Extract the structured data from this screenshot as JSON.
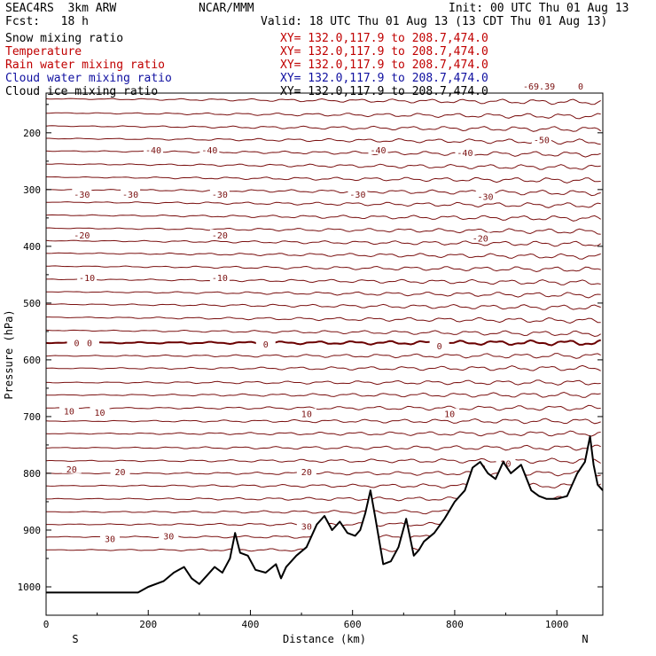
{
  "header": {
    "model": "SEAC4RS  3km ARW",
    "org": "NCAR/MMM",
    "init": "Init: 00 UTC Thu 01 Aug 13",
    "fcst": "Fcst:   18 h",
    "valid": "Valid: 18 UTC Thu 01 Aug 13 (13 CDT Thu 01 Aug 13)",
    "fields": [
      {
        "name": "Snow mixing ratio",
        "xy": "XY= 132.0,117.9 to 208.7,474.0",
        "color": "#000000",
        "xy_color": "#c00000"
      },
      {
        "name": "Temperature",
        "xy": "XY= 132.0,117.9 to 208.7,474.0",
        "color": "#c00000",
        "xy_color": "#c00000"
      },
      {
        "name": "Rain water mixing ratio",
        "xy": "XY= 132.0,117.9 to 208.7,474.0",
        "color": "#c00000",
        "xy_color": "#c00000"
      },
      {
        "name": "Cloud water mixing ratio",
        "xy": "XY= 132.0,117.9 to 208.7,474.0",
        "color": "#1010a0",
        "xy_color": "#1010a0"
      },
      {
        "name": "Cloud ice mixing ratio",
        "xy": "XY= 132.0,117.9 to 208.7,474.0",
        "color": "#000000",
        "xy_color": "#000000"
      }
    ]
  },
  "colors": {
    "isotherm": "#7a1010",
    "freezing": "#6a0000",
    "terrain": "#000000"
  },
  "chart_data": {
    "type": "line",
    "xlabel": "Distance (km)",
    "ylabel": "Pressure (hPa)",
    "xlim": [
      0,
      1090
    ],
    "ylim": [
      1050,
      130
    ],
    "x_ticks": [
      0,
      200,
      400,
      600,
      800,
      1000
    ],
    "y_ticks": [
      200,
      300,
      400,
      500,
      600,
      700,
      800,
      900,
      1000
    ],
    "corner_labels": {
      "left": "S",
      "right": "N"
    },
    "isotherms_levels_hpa": [
      140,
      165,
      188,
      210,
      232,
      255,
      278,
      300,
      322,
      345,
      368,
      390,
      412,
      435,
      458,
      480,
      502,
      525,
      548,
      570,
      593,
      615,
      640,
      662,
      685,
      708,
      730,
      755,
      778,
      800,
      822,
      845,
      868,
      890,
      912,
      935
    ],
    "freezing_level_hpa": 570,
    "temperature_labels": [
      {
        "text": "-50",
        "x": 970,
        "p": 212
      },
      {
        "text": "-40",
        "x": 210,
        "p": 230
      },
      {
        "text": "-40",
        "x": 320,
        "p": 230
      },
      {
        "text": "-40",
        "x": 650,
        "p": 230
      },
      {
        "text": "-40",
        "x": 820,
        "p": 235
      },
      {
        "text": "-30",
        "x": 70,
        "p": 308
      },
      {
        "text": "-30",
        "x": 165,
        "p": 308
      },
      {
        "text": "-30",
        "x": 340,
        "p": 308
      },
      {
        "text": "-30",
        "x": 610,
        "p": 308
      },
      {
        "text": "-30",
        "x": 860,
        "p": 312
      },
      {
        "text": "-20",
        "x": 70,
        "p": 380
      },
      {
        "text": "-20",
        "x": 340,
        "p": 380
      },
      {
        "text": "-20",
        "x": 850,
        "p": 385
      },
      {
        "text": "-10",
        "x": 80,
        "p": 455
      },
      {
        "text": "-10",
        "x": 340,
        "p": 455
      },
      {
        "text": "0",
        "x": 60,
        "p": 570
      },
      {
        "text": "0",
        "x": 85,
        "p": 570
      },
      {
        "text": "0",
        "x": 430,
        "p": 572
      },
      {
        "text": "0",
        "x": 770,
        "p": 575
      },
      {
        "text": "10",
        "x": 45,
        "p": 690
      },
      {
        "text": "10",
        "x": 105,
        "p": 692
      },
      {
        "text": "10",
        "x": 510,
        "p": 695
      },
      {
        "text": "10",
        "x": 790,
        "p": 695
      },
      {
        "text": "20",
        "x": 50,
        "p": 792
      },
      {
        "text": "20",
        "x": 145,
        "p": 797
      },
      {
        "text": "20",
        "x": 510,
        "p": 797
      },
      {
        "text": "20",
        "x": 850,
        "p": 790
      },
      {
        "text": "20",
        "x": 900,
        "p": 782
      },
      {
        "text": "30",
        "x": 125,
        "p": 915
      },
      {
        "text": "30",
        "x": 240,
        "p": 910
      },
      {
        "text": "30",
        "x": 510,
        "p": 893
      }
    ],
    "top_labels": [
      "-69.39",
      "0"
    ],
    "terrain": {
      "x": [
        0,
        180,
        200,
        230,
        250,
        260,
        270,
        285,
        300,
        315,
        330,
        345,
        360,
        370,
        380,
        395,
        410,
        430,
        450,
        460,
        470,
        490,
        510,
        530,
        545,
        560,
        575,
        590,
        605,
        615,
        625,
        635,
        645,
        660,
        675,
        690,
        705,
        720,
        730,
        740,
        760,
        780,
        800,
        820,
        835,
        850,
        865,
        880,
        895,
        910,
        930,
        950,
        965,
        980,
        1000,
        1020,
        1040,
        1055,
        1065,
        1072,
        1080,
        1090
      ],
      "p": [
        1010,
        1010,
        1000,
        990,
        975,
        970,
        965,
        985,
        995,
        980,
        965,
        975,
        950,
        905,
        940,
        945,
        970,
        975,
        960,
        985,
        965,
        945,
        930,
        890,
        875,
        900,
        885,
        905,
        910,
        900,
        870,
        830,
        880,
        960,
        955,
        930,
        880,
        945,
        935,
        920,
        905,
        880,
        850,
        830,
        790,
        780,
        800,
        810,
        780,
        800,
        785,
        830,
        840,
        845,
        845,
        840,
        800,
        780,
        735,
        785,
        820,
        830
      ]
    }
  }
}
